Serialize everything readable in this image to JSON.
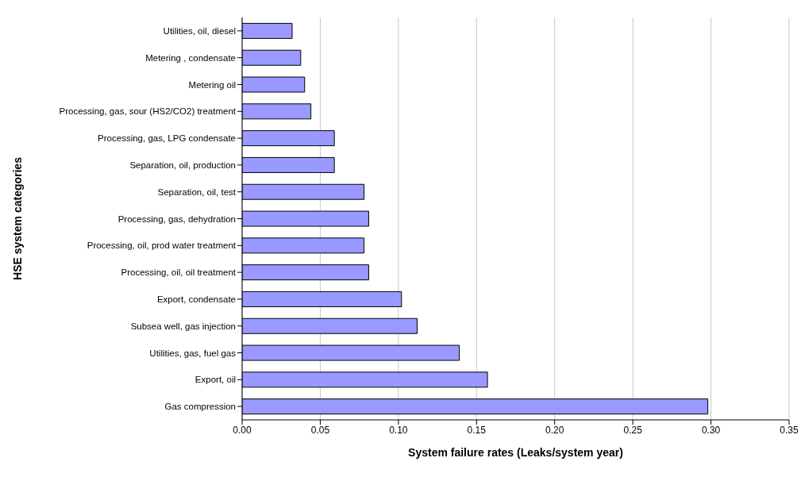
{
  "chart_data": {
    "type": "bar",
    "orientation": "horizontal",
    "xlabel": "System failure rates (Leaks/system year)",
    "ylabel": "HSE system categories",
    "categories": [
      "Utilities, oil, diesel",
      "Metering , condensate",
      "Metering oil",
      "Processing, gas, sour (HS2/CO2) treatment",
      "Processing, gas, LPG condensate",
      "Separation, oil, production",
      "Separation, oil, test",
      "Processing, gas, dehydration",
      "Processing, oil, prod water treatment",
      "Processing, oil, oil treatment",
      "Export, condensate",
      "Subsea well, gas injection",
      "Utilities, gas, fuel gas",
      "Export, oil",
      "Gas compression"
    ],
    "values": [
      0.032,
      0.0375,
      0.04,
      0.044,
      0.059,
      0.059,
      0.078,
      0.081,
      0.078,
      0.081,
      0.102,
      0.112,
      0.139,
      0.157,
      0.298
    ],
    "color": "#9999ff",
    "xlim": [
      0,
      0.35
    ],
    "xticks": [
      {
        "value": 0,
        "label": "0.00"
      },
      {
        "value": 0.05,
        "label": "0.05"
      },
      {
        "value": 0.1,
        "label": "0.10"
      },
      {
        "value": 0.15,
        "label": "0.15"
      },
      {
        "value": 0.2,
        "label": "0.20"
      },
      {
        "value": 0.25,
        "label": "0.25"
      },
      {
        "value": 0.3,
        "label": "0.30"
      },
      {
        "value": 0.35,
        "label": "0.35"
      }
    ],
    "grid": "x",
    "legend": false
  }
}
